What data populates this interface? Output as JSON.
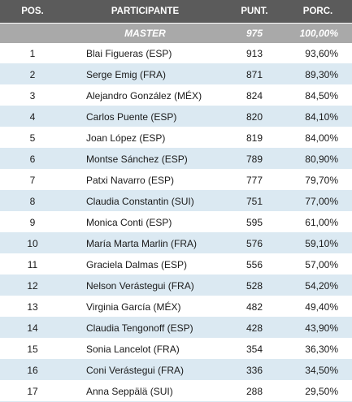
{
  "headers": {
    "pos": "POS.",
    "participant": "PARTICIPANTE",
    "points": "PUNT.",
    "percent": "PORC."
  },
  "master": {
    "label": "MASTER",
    "points": "975",
    "percent": "100,00%"
  },
  "rows": [
    {
      "pos": "1",
      "name": "Blai Figueras (ESP)",
      "points": "913",
      "percent": "93,60%"
    },
    {
      "pos": "2",
      "name": "Serge Emig (FRA)",
      "points": "871",
      "percent": "89,30%"
    },
    {
      "pos": "3",
      "name": "Alejandro González (MÉX)",
      "points": "824",
      "percent": "84,50%"
    },
    {
      "pos": "4",
      "name": "Carlos Puente (ESP)",
      "points": "820",
      "percent": "84,10%"
    },
    {
      "pos": "5",
      "name": "Joan López (ESP)",
      "points": "819",
      "percent": "84,00%"
    },
    {
      "pos": "6",
      "name": "Montse Sánchez (ESP)",
      "points": "789",
      "percent": "80,90%"
    },
    {
      "pos": "7",
      "name": "Patxi Navarro (ESP)",
      "points": "777",
      "percent": "79,70%"
    },
    {
      "pos": "8",
      "name": "Claudia Constantin (SUI)",
      "points": "751",
      "percent": "77,00%"
    },
    {
      "pos": "9",
      "name": "Monica Conti (ESP)",
      "points": "595",
      "percent": "61,00%"
    },
    {
      "pos": "10",
      "name": "María Marta Marlin (FRA)",
      "points": "576",
      "percent": "59,10%"
    },
    {
      "pos": "11",
      "name": "Graciela Dalmas (ESP)",
      "points": "556",
      "percent": "57,00%"
    },
    {
      "pos": "12",
      "name": "Nelson Verástegui (FRA)",
      "points": "528",
      "percent": "54,20%"
    },
    {
      "pos": "13",
      "name": "Virginia García (MÉX)",
      "points": "482",
      "percent": "49,40%"
    },
    {
      "pos": "14",
      "name": "Claudia Tengonoff (ESP)",
      "points": "428",
      "percent": "43,90%"
    },
    {
      "pos": "15",
      "name": "Sonia Lancelot (FRA)",
      "points": "354",
      "percent": "36,30%"
    },
    {
      "pos": "16",
      "name": "Coni Verástegui (FRA)",
      "points": "336",
      "percent": "34,50%"
    },
    {
      "pos": "17",
      "name": "Anna Seppälä (SUI)",
      "points": "288",
      "percent": "29,50%"
    }
  ],
  "colors": {
    "header_bg": "#5b5b5b",
    "master_bg": "#a9a9a9",
    "stripe_bg": "#dbe9f2"
  }
}
